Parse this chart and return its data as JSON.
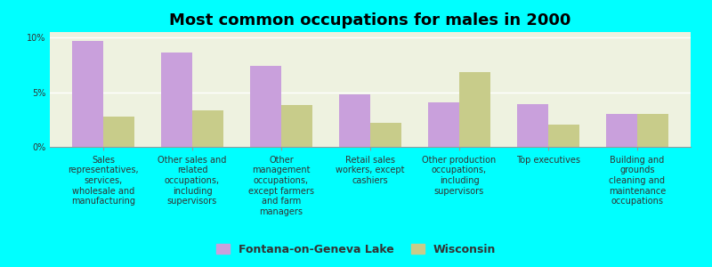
{
  "title": "Most common occupations for males in 2000",
  "categories": [
    "Sales\nrepresentatives,\nservices,\nwholesale and\nmanufacturing",
    "Other sales and\nrelated\noccupations,\nincluding\nsupervisors",
    "Other\nmanagement\noccupations,\nexcept farmers\nand farm\nmanagers",
    "Retail sales\nworkers, except\ncashiers",
    "Other production\noccupations,\nincluding\nsupervisors",
    "Top executives",
    "Building and\ngrounds\ncleaning and\nmaintenance\noccupations"
  ],
  "fontana_values": [
    9.7,
    8.6,
    7.4,
    4.8,
    4.1,
    3.9,
    3.0
  ],
  "wisconsin_values": [
    2.8,
    3.3,
    3.8,
    2.2,
    6.8,
    2.0,
    3.0
  ],
  "fontana_color": "#c9a0dc",
  "wisconsin_color": "#c8cc8a",
  "background_color": "#00ffff",
  "plot_bg_color": "#eef2e0",
  "ylim": [
    0,
    10.5
  ],
  "yticks": [
    0,
    5,
    10
  ],
  "ytick_labels": [
    "0%",
    "5%",
    "10%"
  ],
  "legend_labels": [
    "Fontana-on-Geneva Lake",
    "Wisconsin"
  ],
  "title_fontsize": 13,
  "tick_fontsize": 7.0,
  "legend_fontsize": 9,
  "bar_width": 0.35
}
